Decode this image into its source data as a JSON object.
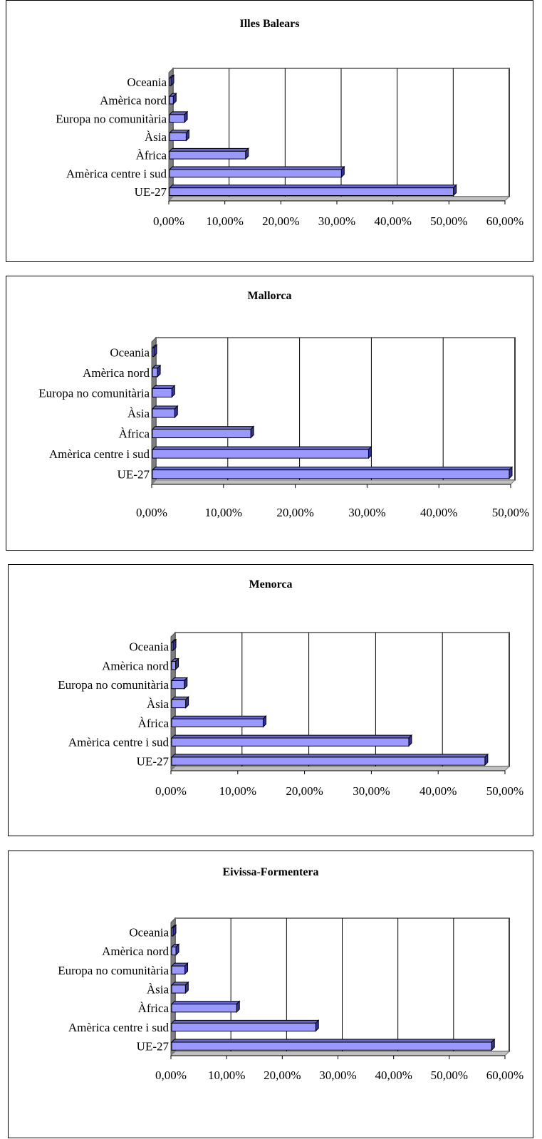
{
  "chart_data": [
    {
      "type": "bar",
      "orientation": "horizontal",
      "title": "Illes Balears",
      "categories": [
        "Oceania",
        "Amèrica nord",
        "Europa no comunitària",
        "Àsia",
        "Àfrica",
        "Amèrica centre i sud",
        "UE-27"
      ],
      "values": [
        0.2,
        0.8,
        2.8,
        3.1,
        13.7,
        30.8,
        50.8
      ],
      "xlim": [
        0,
        60
      ],
      "ticks": [
        "0,00%",
        "10,00%",
        "20,00%",
        "30,00%",
        "40,00%",
        "50,00%",
        "60,00%"
      ],
      "grid": true,
      "bar_color": "#9999ff"
    },
    {
      "type": "bar",
      "orientation": "horizontal",
      "title": "Mallorca",
      "categories": [
        "Oceania",
        "Amèrica nord",
        "Europa no comunitària",
        "Àsia",
        "Àfrica",
        "Amèrica centre i sud",
        "UE-27"
      ],
      "values": [
        0.2,
        0.8,
        2.8,
        3.2,
        13.8,
        30.2,
        49.8
      ],
      "xlim": [
        0,
        50
      ],
      "ticks": [
        "0,00%",
        "10,00%",
        "20,00%",
        "30,00%",
        "40,00%",
        "50,00%"
      ],
      "grid": true,
      "bar_color": "#9999ff"
    },
    {
      "type": "bar",
      "orientation": "horizontal",
      "title": "Menorca",
      "categories": [
        "Oceania",
        "Amèrica nord",
        "Europa no comunitària",
        "Àsia",
        "Àfrica",
        "Amèrica centre i sud",
        "UE-27"
      ],
      "values": [
        0.2,
        0.7,
        2.0,
        2.2,
        13.8,
        35.6,
        47.0
      ],
      "xlim": [
        0,
        50
      ],
      "ticks": [
        "0,00%",
        "10,00%",
        "20,00%",
        "30,00%",
        "40,00%",
        "50,00%"
      ],
      "grid": true,
      "bar_color": "#9999ff"
    },
    {
      "type": "bar",
      "orientation": "horizontal",
      "title": "Eivissa-Formentera",
      "categories": [
        "Oceania",
        "Amèrica nord",
        "Europa no comunitària",
        "Àsia",
        "Àfrica",
        "Amèrica centre i sud",
        "UE-27"
      ],
      "values": [
        0.2,
        0.9,
        2.5,
        2.6,
        11.8,
        26.0,
        57.6
      ],
      "xlim": [
        0,
        60
      ],
      "ticks": [
        "0,00%",
        "10,00%",
        "20,00%",
        "30,00%",
        "40,00%",
        "50,00%",
        "60,00%"
      ],
      "grid": true,
      "bar_color": "#9999ff"
    }
  ]
}
